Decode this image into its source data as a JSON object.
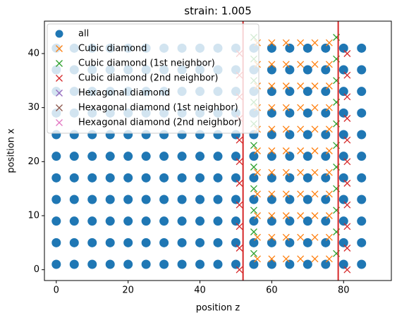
{
  "chart_data": {
    "type": "scatter",
    "title": "strain: 1.005",
    "x_label": "position z",
    "y_label": "position x",
    "xlim": [
      -3.3,
      93.3
    ],
    "ylim": [
      -2,
      46
    ],
    "xticks": [
      0,
      20,
      40,
      60,
      80
    ],
    "yticks": [
      0,
      10,
      20,
      30,
      40
    ],
    "legend": "upper left",
    "vlines": [
      52,
      78.5
    ],
    "vline_color": "#d62728",
    "series": [
      {
        "name": "all",
        "color": "#1f77b4",
        "marker": "o",
        "x": [
          0,
          5,
          10,
          15,
          20,
          25,
          30,
          35,
          40,
          45,
          50,
          55,
          60,
          65,
          70,
          75,
          80,
          85,
          0,
          5,
          10,
          15,
          20,
          25,
          30,
          35,
          40,
          45,
          50,
          55,
          60,
          65,
          70,
          75,
          80,
          85,
          0,
          5,
          10,
          15,
          20,
          25,
          30,
          35,
          40,
          45,
          50,
          55,
          60,
          65,
          70,
          75,
          80,
          85,
          0,
          5,
          10,
          15,
          20,
          25,
          30,
          35,
          40,
          45,
          50,
          55,
          60,
          65,
          70,
          75,
          80,
          85,
          0,
          5,
          10,
          15,
          20,
          25,
          30,
          35,
          40,
          45,
          50,
          55,
          60,
          65,
          70,
          75,
          80,
          85,
          0,
          5,
          10,
          15,
          20,
          25,
          30,
          35,
          40,
          45,
          50,
          55,
          60,
          65,
          70,
          75,
          80,
          85,
          0,
          5,
          10,
          15,
          20,
          25,
          30,
          35,
          40,
          45,
          50,
          55,
          60,
          65,
          70,
          75,
          80,
          85,
          0,
          5,
          10,
          15,
          20,
          25,
          30,
          35,
          40,
          45,
          50,
          55,
          60,
          65,
          70,
          75,
          80,
          85,
          0,
          5,
          10,
          15,
          20,
          25,
          30,
          35,
          40,
          45,
          50,
          55,
          60,
          65,
          70,
          75,
          80,
          85,
          0,
          5,
          10,
          15,
          20,
          25,
          30,
          35,
          40,
          45,
          50,
          55,
          60,
          65,
          70,
          75,
          80,
          85,
          0,
          5,
          10,
          15,
          20,
          25,
          30,
          35,
          40,
          45,
          50,
          55,
          60,
          65,
          70,
          75,
          80,
          85
        ],
        "values": [
          1,
          1,
          1,
          1,
          1,
          1,
          1,
          1,
          1,
          1,
          1,
          1,
          1,
          1,
          1,
          1,
          1,
          1,
          5,
          5,
          5,
          5,
          5,
          5,
          5,
          5,
          5,
          5,
          5,
          5,
          5,
          5,
          5,
          5,
          5,
          5,
          9,
          9,
          9,
          9,
          9,
          9,
          9,
          9,
          9,
          9,
          9,
          9,
          9,
          9,
          9,
          9,
          9,
          9,
          13,
          13,
          13,
          13,
          13,
          13,
          13,
          13,
          13,
          13,
          13,
          13,
          13,
          13,
          13,
          13,
          13,
          13,
          17,
          17,
          17,
          17,
          17,
          17,
          17,
          17,
          17,
          17,
          17,
          17,
          17,
          17,
          17,
          17,
          17,
          17,
          21,
          21,
          21,
          21,
          21,
          21,
          21,
          21,
          21,
          21,
          21,
          21,
          21,
          21,
          21,
          21,
          21,
          21,
          25,
          25,
          25,
          25,
          25,
          25,
          25,
          25,
          25,
          25,
          25,
          25,
          25,
          25,
          25,
          25,
          25,
          25,
          29,
          29,
          29,
          29,
          29,
          29,
          29,
          29,
          29,
          29,
          29,
          29,
          29,
          29,
          29,
          29,
          29,
          29,
          33,
          33,
          33,
          33,
          33,
          33,
          33,
          33,
          33,
          33,
          33,
          33,
          33,
          33,
          33,
          33,
          33,
          33,
          37,
          37,
          37,
          37,
          37,
          37,
          37,
          37,
          37,
          37,
          37,
          37,
          37,
          37,
          37,
          37,
          37,
          37,
          41,
          41,
          41,
          41,
          41,
          41,
          41,
          41,
          41,
          41,
          41,
          41,
          41,
          41,
          41,
          41,
          41,
          41
        ]
      },
      {
        "name": "Cubic diamond",
        "color": "#ff7f0e",
        "marker": "x",
        "x": [
          56,
          60,
          64,
          68,
          72,
          76,
          56,
          60,
          64,
          68,
          72,
          76,
          56,
          60,
          64,
          68,
          72,
          76,
          56,
          60,
          64,
          68,
          72,
          76,
          56,
          60,
          64,
          68,
          72,
          76,
          56,
          60,
          64,
          68,
          72,
          76,
          56,
          60,
          64,
          68,
          72,
          76,
          56,
          60,
          64,
          68,
          72,
          76,
          56,
          60,
          64,
          68,
          72,
          76,
          56,
          60,
          64,
          68,
          72,
          76,
          56,
          60,
          64,
          68,
          72,
          76
        ],
        "values": [
          2,
          2,
          2,
          2,
          2,
          2,
          6,
          6,
          6,
          6,
          6,
          6,
          10,
          10,
          10,
          10,
          10,
          10,
          14,
          14,
          14,
          14,
          14,
          14,
          18,
          18,
          18,
          18,
          18,
          18,
          22,
          22,
          22,
          22,
          22,
          22,
          26,
          26,
          26,
          26,
          26,
          26,
          30,
          30,
          30,
          30,
          30,
          30,
          34,
          34,
          34,
          34,
          34,
          34,
          38,
          38,
          38,
          38,
          38,
          38,
          42,
          42,
          42,
          42,
          42,
          42
        ]
      },
      {
        "name": "Cubic diamond (1st neighbor)",
        "color": "#2ca02c",
        "marker": "x",
        "x": [
          55,
          78,
          55,
          78,
          55,
          78,
          55,
          78,
          55,
          78,
          55,
          78,
          55,
          78,
          55,
          78,
          55,
          78,
          55,
          78,
          55,
          78
        ],
        "values": [
          3,
          3,
          7,
          7,
          11,
          11,
          15,
          15,
          19,
          19,
          23,
          23,
          27,
          27,
          31,
          31,
          35,
          35,
          39,
          39,
          43,
          43
        ]
      },
      {
        "name": "Cubic diamond (2nd neighbor)",
        "color": "#d62728",
        "marker": "x",
        "x": [
          51,
          81,
          51,
          81,
          51,
          81,
          51,
          81,
          51,
          81,
          51,
          81,
          51,
          81,
          51,
          81,
          51,
          81,
          51,
          81,
          51,
          81
        ],
        "values": [
          0,
          0,
          4,
          4,
          8,
          8,
          12,
          12,
          16,
          16,
          20,
          20,
          24,
          24,
          28,
          28,
          32,
          32,
          36,
          36,
          40,
          40
        ]
      },
      {
        "name": "Hexagonal diamond",
        "color": "#9467bd",
        "marker": "x",
        "x": [],
        "values": []
      },
      {
        "name": "Hexagonal diamond (1st neighbor)",
        "color": "#8c564b",
        "marker": "x",
        "x": [],
        "values": []
      },
      {
        "name": "Hexagonal diamond (2nd neighbor)",
        "color": "#e377c2",
        "marker": "x",
        "x": [],
        "values": []
      }
    ]
  }
}
